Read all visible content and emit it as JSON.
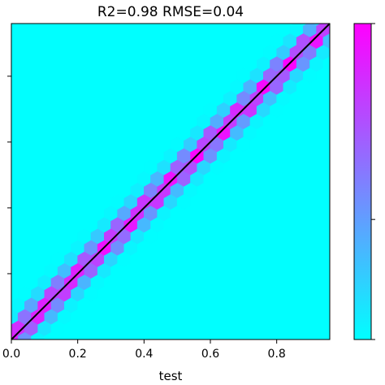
{
  "chart_data": {
    "type": "heatmap",
    "subtype": "hexbin",
    "title": "R2=0.98 RMSE=0.04",
    "xlabel": "test",
    "ylabel": "",
    "xlim": [
      0.0,
      0.96
    ],
    "ylim": [
      0.0,
      0.96
    ],
    "x_ticks": [
      0.0,
      0.2,
      0.4,
      0.6,
      0.8
    ],
    "x_tick_labels": [
      "0.0",
      "0.2",
      "0.4",
      "0.6",
      "0.8"
    ],
    "y_ticks": [
      0.2,
      0.4,
      0.6,
      0.8
    ],
    "y_tick_labels": [],
    "grid": false,
    "reference_line": {
      "from": [
        0.0,
        0.0
      ],
      "to": [
        0.96,
        0.96
      ],
      "color": "#000000"
    },
    "colormap": [
      "#00ffff",
      "#ff00ff"
    ],
    "colorbar_range": [
      1,
      100
    ],
    "colorbar_scale": "log",
    "gridsize": 24,
    "density_band": {
      "center_offset": 0.0,
      "spread": 0.045
    }
  }
}
